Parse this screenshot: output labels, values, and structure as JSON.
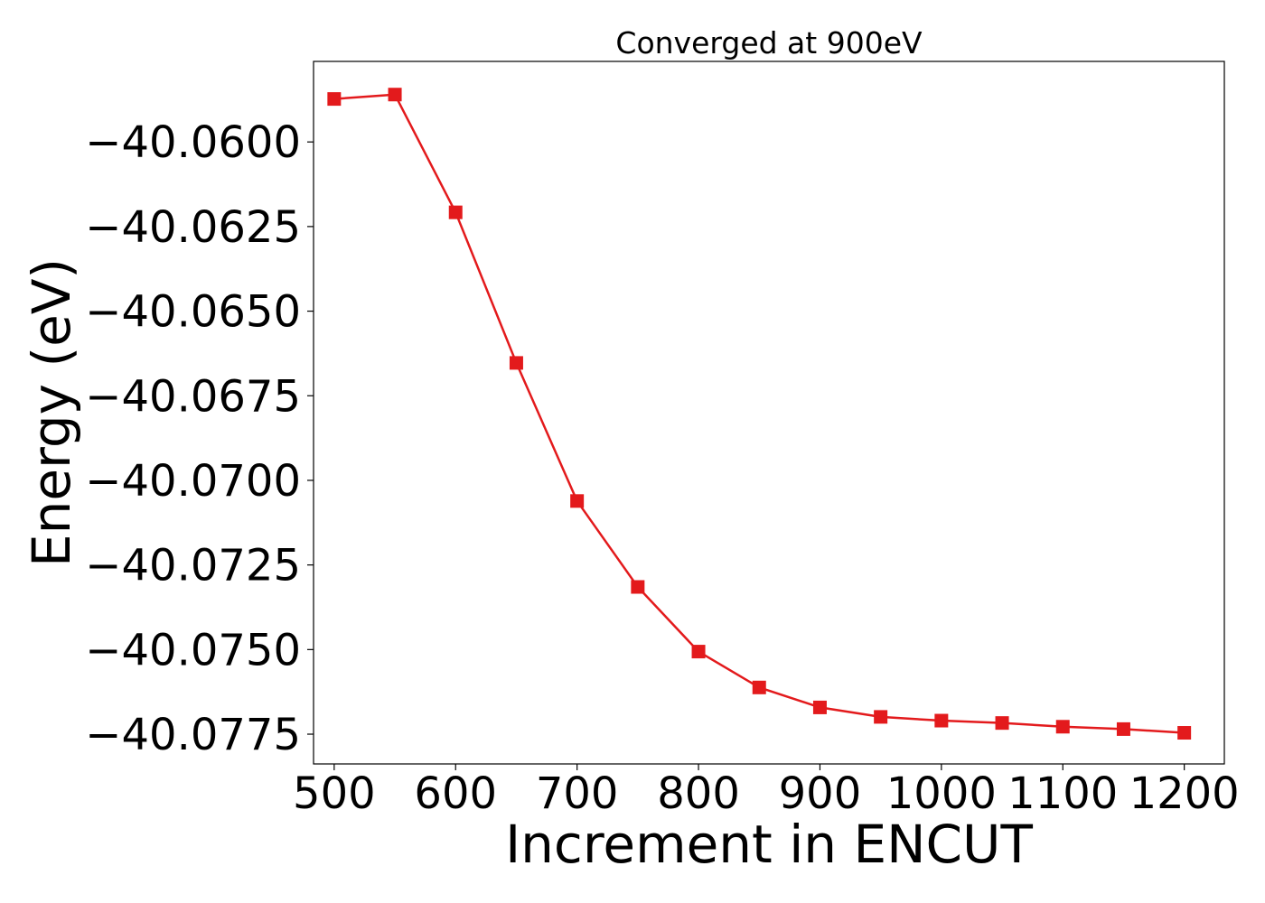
{
  "chart_data": {
    "type": "line",
    "title": "Converged at 900eV",
    "xlabel": "Increment in ENCUT",
    "ylabel": "Energy (eV)",
    "xlim": [
      483,
      1233
    ],
    "ylim": [
      -40.07838,
      -40.05762
    ],
    "xticks": [
      500,
      600,
      700,
      800,
      900,
      1000,
      1100,
      1200
    ],
    "xtick_labels": [
      "500",
      "600",
      "700",
      "800",
      "900",
      "1000",
      "1100",
      "1200"
    ],
    "yticks": [
      -40.06,
      -40.0625,
      -40.065,
      -40.0675,
      -40.07,
      -40.0725,
      -40.075,
      -40.0775
    ],
    "ytick_labels": [
      "−40.0600",
      "−40.0625",
      "−40.0650",
      "−40.0675",
      "−40.0700",
      "−40.0725",
      "−40.0750",
      "−40.0775"
    ],
    "grid": false,
    "series": [
      {
        "color": "#e31a1c",
        "marker": "square",
        "x": [
          500,
          550,
          600,
          650,
          700,
          750,
          800,
          850,
          900,
          950,
          1000,
          1050,
          1100,
          1150,
          1200
        ],
        "y": [
          -40.05873,
          -40.0586,
          -40.06208,
          -40.06653,
          -40.07061,
          -40.07315,
          -40.07506,
          -40.07612,
          -40.07671,
          -40.07699,
          -40.0771,
          -40.07717,
          -40.07728,
          -40.07735,
          -40.07746
        ]
      }
    ]
  }
}
